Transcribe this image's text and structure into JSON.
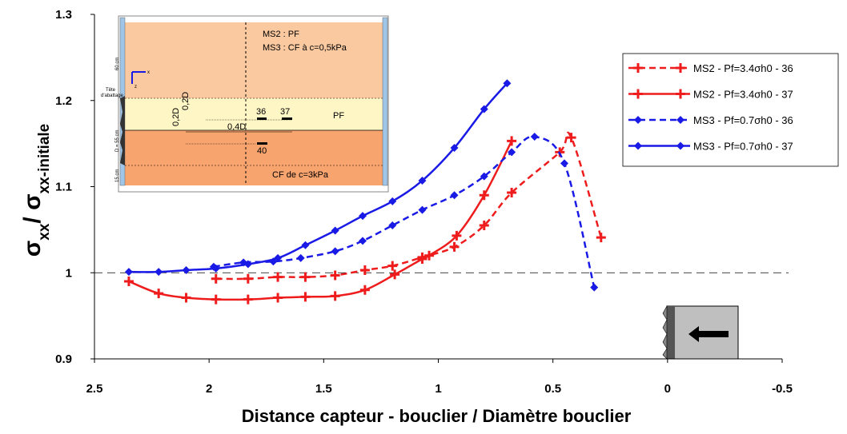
{
  "chart_data": {
    "type": "line",
    "xlabel": "Distance capteur - bouclier / Diamètre bouclier",
    "ylabel": [
      "σ",
      "xx",
      "/ σ",
      "xx-initiale"
    ],
    "xlim": [
      2.5,
      -0.5
    ],
    "ylim": [
      0.9,
      1.3
    ],
    "xticks": [
      2.5,
      2,
      1.5,
      1,
      0.5,
      0,
      -0.5
    ],
    "yticks": [
      0.9,
      1,
      1.1,
      1.2,
      1.3
    ],
    "reference_line": 1,
    "legend": "upper right",
    "series": [
      {
        "name": "MS2 - Pf=3.4σh0 - 36",
        "color": "#ee1c1c",
        "dashed": true,
        "marker": "plus",
        "x": [
          1.97,
          1.83,
          1.7,
          1.58,
          1.45,
          1.32,
          1.2,
          1.07,
          0.93,
          0.8,
          0.68,
          0.47,
          0.42,
          0.29
        ],
        "values": [
          0.993,
          0.993,
          0.995,
          0.995,
          0.997,
          1.003,
          1.008,
          1.018,
          1.03,
          1.055,
          1.093,
          1.14,
          1.157,
          1.041
        ]
      },
      {
        "name": "MS2 - Pf=3.4σh0 - 37",
        "color": "#ee1c1c",
        "dashed": false,
        "marker": "plus",
        "x": [
          2.35,
          2.22,
          2.1,
          1.97,
          1.83,
          1.7,
          1.58,
          1.45,
          1.32,
          1.19,
          1.07,
          1.04,
          0.92,
          0.8,
          0.68
        ],
        "values": [
          0.99,
          0.976,
          0.971,
          0.969,
          0.969,
          0.971,
          0.972,
          0.973,
          0.98,
          0.998,
          1.016,
          1.02,
          1.043,
          1.09,
          1.153
        ]
      },
      {
        "name": "MS3 - Pf=0.7σh0 - 36",
        "color": "#1a1ae6",
        "dashed": true,
        "marker": "diamond",
        "x": [
          1.98,
          1.85,
          1.72,
          1.6,
          1.45,
          1.33,
          1.2,
          1.07,
          0.93,
          0.8,
          0.68,
          0.58,
          0.45,
          0.32
        ],
        "values": [
          1.007,
          1.012,
          1.013,
          1.017,
          1.025,
          1.037,
          1.055,
          1.073,
          1.09,
          1.112,
          1.14,
          1.158,
          1.127,
          0.983
        ]
      },
      {
        "name": "MS3 - Pf=0.7σh0 - 37",
        "color": "#1a1ae6",
        "dashed": false,
        "marker": "diamond",
        "x": [
          2.35,
          2.22,
          2.1,
          1.97,
          1.83,
          1.7,
          1.58,
          1.45,
          1.33,
          1.2,
          1.07,
          0.93,
          0.8,
          0.7
        ],
        "values": [
          1.001,
          1.001,
          1.003,
          1.005,
          1.01,
          1.017,
          1.032,
          1.049,
          1.066,
          1.083,
          1.107,
          1.145,
          1.19,
          1.22
        ]
      }
    ]
  },
  "inset": {
    "ms2": "MS2 : PF",
    "ms3": "MS3 : CF à c=0,5kPa",
    "pf": "PF",
    "cf": "CF de c=3kPa",
    "s36": "36",
    "s37": "37",
    "s40": "40",
    "d1": "0,2D",
    "d2": "0,2D",
    "d3": "0,4D",
    "h60": "60 cm",
    "h55": "D = 55 cm",
    "h15": "15 cm",
    "tete1": "Tête",
    "tete2": "d'abattage",
    "ax": "x",
    "az": "z"
  }
}
